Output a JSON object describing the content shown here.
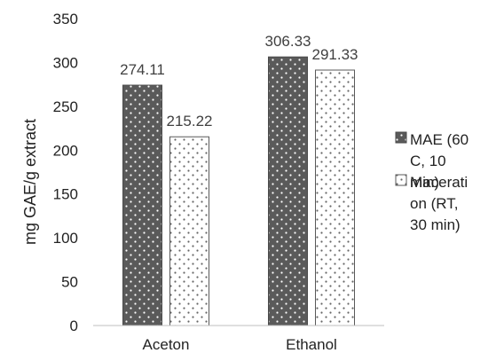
{
  "chart_data": {
    "type": "bar",
    "title": "",
    "xlabel": "",
    "ylabel": "mg GAE/g extract",
    "ylim": [
      0,
      350
    ],
    "yticks": [
      "0",
      "50",
      "100",
      "150",
      "200",
      "250",
      "300",
      "350"
    ],
    "categories": [
      "Aceton",
      "Ethanol"
    ],
    "series": [
      {
        "name": "MAE (60 C, 10 min)",
        "legend_lines": [
          "MAE (60",
          "C, 10",
          "min)"
        ],
        "values": [
          274.11,
          306.33
        ],
        "labels": [
          "274.11",
          "306.33"
        ],
        "color": "#5a5a5a",
        "pattern": "dark-dotted"
      },
      {
        "name": "Maceration (RT, 30 min)",
        "legend_lines": [
          "Macerati",
          "on (RT,",
          "30 min)"
        ],
        "values": [
          215.22,
          291.33
        ],
        "labels": [
          "215.22",
          "291.33"
        ],
        "color": "#ffffff",
        "pattern": "light-dotted"
      }
    ],
    "grid": false,
    "legend_position": "right"
  }
}
